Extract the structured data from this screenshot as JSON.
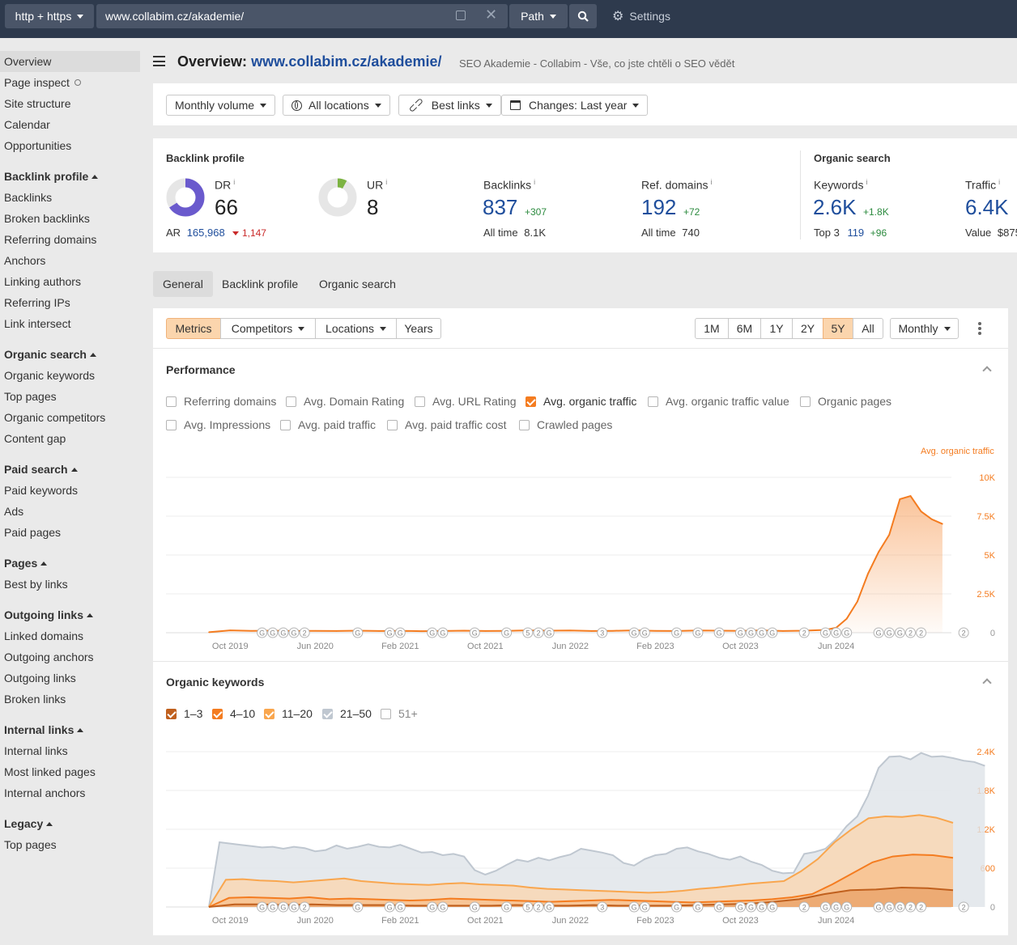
{
  "topbar": {
    "protocol": "http + https",
    "url": "www.collabim.cz/akademie/",
    "mode": "Path",
    "settings": "Settings"
  },
  "sidebar": {
    "top": [
      "Overview",
      "Page inspect",
      "Site structure",
      "Calendar",
      "Opportunities"
    ],
    "sections": [
      {
        "title": "Backlink profile",
        "items": [
          "Backlinks",
          "Broken backlinks",
          "Referring domains",
          "Anchors",
          "Linking authors",
          "Referring IPs",
          "Link intersect"
        ]
      },
      {
        "title": "Organic search",
        "items": [
          "Organic keywords",
          "Top pages",
          "Organic competitors",
          "Content gap"
        ]
      },
      {
        "title": "Paid search",
        "items": [
          "Paid keywords",
          "Ads",
          "Paid pages"
        ]
      },
      {
        "title": "Pages",
        "items": [
          "Best by links"
        ]
      },
      {
        "title": "Outgoing links",
        "items": [
          "Linked domains",
          "Outgoing anchors",
          "Outgoing links",
          "Broken links"
        ]
      },
      {
        "title": "Internal links",
        "items": [
          "Internal links",
          "Most linked pages",
          "Internal anchors"
        ]
      },
      {
        "title": "Legacy",
        "items": [
          "Top pages"
        ]
      }
    ]
  },
  "header": {
    "prefix": "Overview:",
    "url": "www.collabim.cz/akademie/",
    "subtitle": "SEO Akademie - Collabim - Vše, co jste chtěli o SEO vědět"
  },
  "filters": {
    "volume": "Monthly volume",
    "locations": "All locations",
    "links": "Best links",
    "changes": "Changes: Last year"
  },
  "metrics": {
    "backlink_title": "Backlink profile",
    "organic_title": "Organic search",
    "info": "i",
    "dr": {
      "label": "DR",
      "value": "66",
      "ratio": 0.66,
      "ar_label": "AR",
      "ar_value": "165,968",
      "ar_change": "1,147"
    },
    "ur": {
      "label": "UR",
      "value": "8",
      "ratio": 0.08
    },
    "backlinks": {
      "label": "Backlinks",
      "value": "837",
      "change": "+307",
      "all_time_label": "All time",
      "all_time": "8.1K"
    },
    "ref_domains": {
      "label": "Ref. domains",
      "value": "192",
      "change": "+72",
      "all_time_label": "All time",
      "all_time": "740"
    },
    "keywords": {
      "label": "Keywords",
      "value": "2.6K",
      "change": "+1.8K",
      "top3_label": "Top 3",
      "top3": "119",
      "top3_change": "+96"
    },
    "traffic": {
      "label": "Traffic",
      "value": "6.4K",
      "value_label": "Value",
      "value_amount": "$875"
    }
  },
  "tabs": [
    "General",
    "Backlink profile",
    "Organic search"
  ],
  "toolbar": {
    "metrics": "Metrics",
    "competitors": "Competitors",
    "locations": "Locations",
    "years": "Years",
    "ranges": [
      "1M",
      "6M",
      "1Y",
      "2Y",
      "5Y",
      "All"
    ],
    "active_range": "5Y",
    "interval": "Monthly"
  },
  "performance": {
    "title": "Performance",
    "checkboxes": [
      {
        "label": "Referring domains",
        "checked": false
      },
      {
        "label": "Avg. Domain Rating",
        "checked": false
      },
      {
        "label": "Avg. URL Rating",
        "checked": false
      },
      {
        "label": "Avg. organic traffic",
        "checked": true
      },
      {
        "label": "Avg. organic traffic value",
        "checked": false
      },
      {
        "label": "Organic pages",
        "checked": false
      },
      {
        "label": "Avg. Impressions",
        "checked": false
      },
      {
        "label": "Avg. paid traffic",
        "checked": false
      },
      {
        "label": "Avg. paid traffic cost",
        "checked": false
      },
      {
        "label": "Crawled pages",
        "checked": false
      }
    ]
  },
  "organic_keywords": {
    "title": "Organic keywords",
    "checkboxes": [
      {
        "label": "1–3",
        "checked": true,
        "color": "#c0601e"
      },
      {
        "label": "4–10",
        "checked": true,
        "color": "#f47c20"
      },
      {
        "label": "11–20",
        "checked": true,
        "color": "#f9a64e"
      },
      {
        "label": "21–50",
        "checked": true,
        "color": "#bfc7d0"
      },
      {
        "label": "51+",
        "checked": false,
        "color": "#999999"
      }
    ]
  },
  "chart_data": [
    {
      "type": "area",
      "series": [
        {
          "name": "Avg. organic traffic",
          "color": "#f47c20"
        }
      ],
      "x_ticks": [
        "Oct 2019",
        "Jun 2020",
        "Feb 2021",
        "Oct 2021",
        "Jun 2022",
        "Feb 2023",
        "Oct 2023",
        "Jun 2024"
      ],
      "y_ticks": [
        "0",
        "2.5K",
        "5K",
        "7.5K",
        "10K"
      ],
      "ylim": [
        0,
        10000
      ],
      "x_months": [
        0,
        2,
        4,
        6,
        8,
        10,
        12,
        14,
        16,
        18,
        20,
        22,
        24,
        26,
        28,
        30,
        32,
        34,
        36,
        38,
        40,
        42,
        44,
        46,
        48,
        50,
        52,
        54,
        56,
        58,
        59,
        60,
        61,
        62,
        63,
        64,
        65,
        66,
        67,
        68,
        69
      ],
      "values": [
        30,
        150,
        120,
        130,
        110,
        120,
        110,
        130,
        110,
        120,
        100,
        110,
        130,
        110,
        120,
        150,
        130,
        140,
        110,
        120,
        150,
        120,
        110,
        140,
        130,
        120,
        150,
        110,
        130,
        180,
        320,
        900,
        2000,
        3800,
        5200,
        6300,
        8600,
        8800,
        7800,
        7300,
        7000
      ],
      "annotations": [
        "G",
        "G",
        "G",
        "G",
        "2",
        "G",
        "G",
        "G",
        "G",
        "G",
        "G",
        "G",
        "5",
        "2",
        "G",
        "3",
        "G",
        "G",
        "G",
        "G",
        "G",
        "G",
        "G",
        "G",
        "G",
        "2",
        "G",
        "G",
        "G",
        "G",
        "G",
        "G",
        "2",
        "2",
        "2"
      ],
      "annotation_months": [
        5,
        6,
        7,
        8,
        9,
        14,
        17,
        18,
        21,
        22,
        25,
        28,
        30,
        31,
        32,
        37,
        40,
        41,
        44,
        46,
        48,
        50,
        51,
        52,
        53,
        56,
        58,
        59,
        60,
        63,
        64,
        65,
        66,
        67,
        71
      ]
    },
    {
      "type": "area",
      "series": [
        {
          "name": "21–50",
          "color": "#bfc7d0",
          "values": [
            0,
            1000,
            980,
            960,
            940,
            920,
            930,
            900,
            930,
            910,
            860,
            880,
            950,
            900,
            930,
            970,
            930,
            920,
            960,
            900,
            840,
            850,
            800,
            820,
            780,
            570,
            500,
            560,
            650,
            730,
            700,
            760,
            720,
            770,
            810,
            900,
            870,
            840,
            800,
            680,
            640,
            740,
            800,
            820,
            900,
            920,
            860,
            820,
            760,
            730,
            780,
            700,
            650,
            560,
            520,
            530,
            820,
            850,
            900,
            1050,
            1250,
            1400,
            1720,
            2150,
            2320,
            2330,
            2280,
            2380,
            2320,
            2330,
            2300,
            2260,
            2240,
            2180
          ],
          "x_months": [
            0,
            1,
            2,
            3,
            4,
            5,
            6,
            7,
            8,
            9,
            10,
            11,
            12,
            13,
            14,
            15,
            16,
            17,
            18,
            19,
            20,
            21,
            22,
            23,
            24,
            25,
            26,
            27,
            28,
            29,
            30,
            31,
            32,
            33,
            34,
            35,
            36,
            37,
            38,
            39,
            40,
            41,
            42,
            43,
            44,
            45,
            46,
            47,
            48,
            49,
            50,
            51,
            52,
            53,
            54,
            55,
            56,
            57,
            58,
            59,
            60,
            61,
            62,
            63,
            64,
            65,
            66,
            67,
            68,
            69,
            70,
            71,
            72,
            73
          ]
        },
        {
          "name": "11–20",
          "color": "#f9a64e",
          "values": [
            0,
            420,
            430,
            410,
            400,
            380,
            400,
            420,
            440,
            400,
            380,
            360,
            350,
            340,
            360,
            370,
            350,
            340,
            330,
            300,
            280,
            270,
            260,
            250,
            240,
            230,
            220,
            230,
            250,
            280,
            300,
            330,
            360,
            380,
            400,
            550,
            740,
            1000,
            1200,
            1370,
            1400,
            1390,
            1420,
            1380,
            1300
          ]
        },
        {
          "name": "4–10",
          "color": "#f47c20",
          "values": [
            0,
            140,
            150,
            140,
            130,
            150,
            120,
            130,
            120,
            110,
            100,
            110,
            130,
            120,
            110,
            100,
            90,
            80,
            90,
            100,
            110,
            100,
            90,
            80,
            70,
            80,
            90,
            100,
            120,
            150,
            200,
            350,
            520,
            690,
            780,
            810,
            800,
            760
          ]
        },
        {
          "name": "1–3",
          "color": "#c0601e",
          "values": [
            0,
            40,
            40,
            30,
            40,
            30,
            30,
            30,
            20,
            20,
            20,
            20,
            30,
            20,
            20,
            30,
            20,
            20,
            20,
            30,
            40,
            50,
            80,
            120,
            200,
            260,
            270,
            300,
            290,
            260
          ]
        }
      ],
      "x_ticks": [
        "Oct 2019",
        "Jun 2020",
        "Feb 2021",
        "Oct 2021",
        "Jun 2022",
        "Feb 2023",
        "Oct 2023",
        "Jun 2024"
      ],
      "y_ticks": [
        "0",
        "600",
        "1.2K",
        "1.8K",
        "2.4K"
      ],
      "ylim": [
        0,
        2400
      ]
    }
  ]
}
